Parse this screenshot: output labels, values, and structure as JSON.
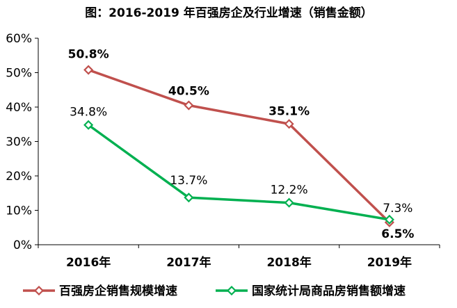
{
  "chart_data": {
    "type": "line",
    "title": "图：2016-2019 年百强房企及行业增速（销售金额）",
    "categories": [
      "2016年",
      "2017年",
      "2018年",
      "2019年"
    ],
    "yticks": [
      "0%",
      "10%",
      "20%",
      "30%",
      "40%",
      "50%",
      "60%"
    ],
    "ylim": [
      0,
      60
    ],
    "legend_position": "bottom",
    "series": [
      {
        "name": "百强房企销售规模增速",
        "color": "#C0504D",
        "values": [
          50.8,
          40.5,
          35.1,
          6.5
        ],
        "labels": [
          "50.8%",
          "40.5%",
          "35.1%",
          "6.5%"
        ]
      },
      {
        "name": "国家统计局商品房销售额增速",
        "color": "#00B050",
        "values": [
          34.8,
          13.7,
          12.2,
          7.3
        ],
        "labels": [
          "34.8%",
          "13.7%",
          "12.2%",
          "7.3%"
        ]
      }
    ]
  }
}
